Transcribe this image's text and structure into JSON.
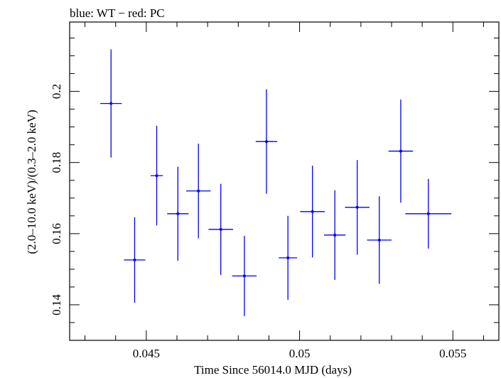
{
  "chart_data": {
    "type": "scatter",
    "title": "blue: WT − red: PC",
    "xlabel": "Time Since 56014.0 MJD (days)",
    "ylabel": "(2.0–10.0 keV)/(0.3–2.0 keV)",
    "xlim": [
      0.0425,
      0.0565
    ],
    "ylim": [
      0.13,
      0.2195
    ],
    "x_ticks": [
      0.045,
      0.05,
      0.055
    ],
    "x_tick_labels": [
      "0.045",
      "0.05",
      "0.055"
    ],
    "y_ticks": [
      0.14,
      0.16,
      0.18,
      0.2
    ],
    "y_tick_labels": [
      "0.14",
      "0.16",
      "0.18",
      "0.2"
    ],
    "grid": false,
    "series": [
      {
        "color": "#0000ee",
        "points": [
          {
            "x": 0.04385,
            "xerr": 0.00035,
            "y": 0.1966,
            "yerr": 0.0152
          },
          {
            "x": 0.04462,
            "xerr": 0.00035,
            "y": 0.1526,
            "yerr": 0.012
          },
          {
            "x": 0.04534,
            "xerr": 0.0002,
            "y": 0.1763,
            "yerr": 0.014
          },
          {
            "x": 0.04603,
            "xerr": 0.00035,
            "y": 0.1656,
            "yerr": 0.0132
          },
          {
            "x": 0.0467,
            "xerr": 0.0004,
            "y": 0.172,
            "yerr": 0.0133
          },
          {
            "x": 0.04743,
            "xerr": 0.0004,
            "y": 0.1612,
            "yerr": 0.0128
          },
          {
            "x": 0.0482,
            "xerr": 0.0004,
            "y": 0.1481,
            "yerr": 0.0113
          },
          {
            "x": 0.04892,
            "xerr": 0.00035,
            "y": 0.1859,
            "yerr": 0.0147
          },
          {
            "x": 0.04962,
            "xerr": 0.0003,
            "y": 0.1532,
            "yerr": 0.0118
          },
          {
            "x": 0.05042,
            "xerr": 0.0004,
            "y": 0.1662,
            "yerr": 0.0129
          },
          {
            "x": 0.05115,
            "xerr": 0.00035,
            "y": 0.1596,
            "yerr": 0.0126
          },
          {
            "x": 0.05188,
            "xerr": 0.0004,
            "y": 0.1674,
            "yerr": 0.0133
          },
          {
            "x": 0.0526,
            "xerr": 0.0004,
            "y": 0.1582,
            "yerr": 0.0123
          },
          {
            "x": 0.0533,
            "xerr": 0.0004,
            "y": 0.1832,
            "yerr": 0.0145
          },
          {
            "x": 0.0542,
            "xerr": 0.00075,
            "y": 0.1656,
            "yerr": 0.0098
          }
        ]
      }
    ]
  }
}
